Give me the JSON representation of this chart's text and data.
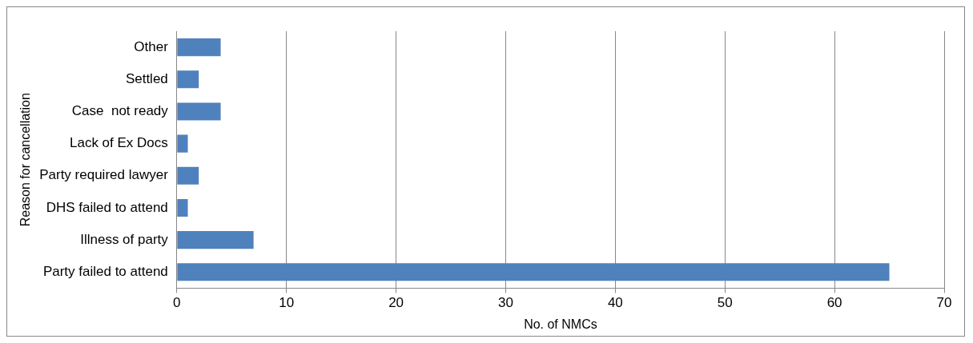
{
  "chart_data": {
    "type": "bar",
    "orientation": "horizontal",
    "xlabel": "No. of NMCs",
    "ylabel": "Reason for cancellation",
    "categories": [
      "Other",
      "Settled",
      "Case  not ready",
      "Lack of Ex Docs",
      "Party required lawyer",
      "DHS failed to attend",
      "Illness of party",
      "Party failed to attend"
    ],
    "values": [
      4,
      2,
      4,
      1,
      2,
      1,
      7,
      65
    ],
    "color": "#4f81bd",
    "xlim": [
      0,
      70
    ],
    "xticks": [
      0,
      10,
      20,
      30,
      40,
      50,
      60,
      70
    ],
    "grid": "x",
    "legend": false
  }
}
